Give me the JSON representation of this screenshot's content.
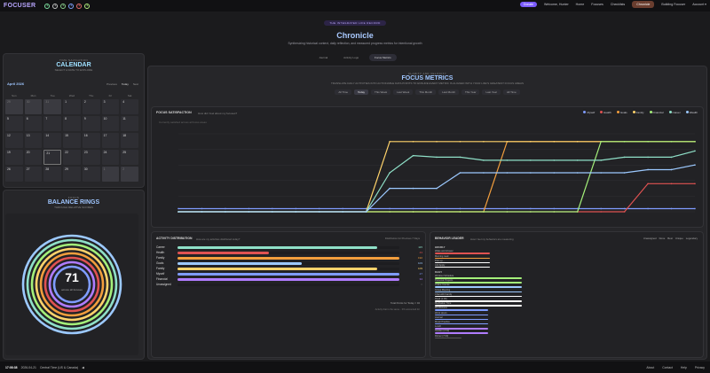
{
  "nav": {
    "logo": "FOCUSER",
    "pill": "Donate",
    "welcome": "Welcome, Hunter",
    "links": [
      "Home",
      "Focuses",
      "Checklists"
    ],
    "active": "Chronicle",
    "extra": [
      "Building Focuser",
      "Account ▾"
    ],
    "dots": [
      "#7ee3a2",
      "#c2c2c2",
      "#8bd18b",
      "#7fa3ff",
      "#e46c6c",
      "#b2f07e"
    ]
  },
  "hero": {
    "eyebrow": "THE INTEGRATED LIFE RECORD",
    "title": "Chronicle",
    "subtitle": "Synthesizing historical context, daily reflection, and measured progress metrics for intentional growth"
  },
  "tabs": [
    "Journal",
    "Activity Logs",
    "Focus Metrics"
  ],
  "activeTab": "Focus Metrics",
  "calendar": {
    "eyebrow": "TIME NAVIGATION",
    "title": "CALENDAR",
    "sub": "SELECT A DATE TO EXPLORE",
    "month": "April 2026",
    "controls": [
      "Previous",
      "Today",
      "Next"
    ],
    "days": [
      "Sun",
      "Mon",
      "Tue",
      "Wed",
      "Thu",
      "Fri",
      "Sat"
    ],
    "cells": [
      "29",
      "30",
      "31",
      "1",
      "2",
      "3",
      "4",
      "5",
      "6",
      "7",
      "8",
      "9",
      "10",
      "11",
      "12",
      "13",
      "14",
      "15",
      "16",
      "17",
      "18",
      "19",
      "20",
      "21",
      "22",
      "23",
      "24",
      "25",
      "26",
      "27",
      "28",
      "29",
      "30",
      "1",
      "2"
    ]
  },
  "rings": {
    "eyebrow": "FOCUS",
    "title": "BALANCE RINGS",
    "sub": "THROUGH RELATIVE SCORES",
    "value": "71",
    "label": "across all focuses"
  },
  "metrics": {
    "eyebrow": "CLARITY AND VELOCITY",
    "title": "FOCUS METRICS",
    "sub": "TRANSLATE DAILY ACTIVITIES INTO ACTIONABLE DATA POINTS TO ENSURE EVERY METRIC IS ALIGNED WITH YOUR LIFE'S GREATEST FOCUS AREAS",
    "ranges": [
      "All Time",
      "Today",
      "This Week",
      "Last Week",
      "This Month",
      "Last Month",
      "This Year",
      "Last Year",
      "All Time"
    ]
  },
  "chart_data": {
    "type": "line",
    "title": "FOCUS SATISFACTION",
    "subtitle": "How did I feel about my focuses?",
    "note": "Currently satisfied across all focus areas",
    "series": [
      {
        "name": "Myself",
        "color": "#7f9cff",
        "values": [
          0.2,
          0.2,
          0.2,
          0.2,
          0.2,
          0.2,
          0.2,
          0.2,
          0.2,
          0.2,
          0.2,
          0.2,
          0.2,
          0.2,
          0.2,
          0.2,
          0.2,
          0.2,
          0.2,
          0.2,
          0.2,
          0.2,
          0.2
        ]
      },
      {
        "name": "Health",
        "color": "#e05252",
        "values": [
          0,
          0,
          0,
          0,
          0,
          0,
          0,
          0,
          0,
          0,
          0,
          0,
          0,
          0,
          0,
          0,
          0,
          0,
          0,
          0,
          1.8,
          1.8,
          1.8
        ]
      },
      {
        "name": "Goals",
        "color": "#f29e3d",
        "values": [
          0,
          0,
          0,
          0,
          0,
          0,
          0,
          0,
          0,
          0,
          0,
          0,
          0,
          0,
          4.5,
          4.5,
          4.5,
          4.5,
          4.5,
          4.5,
          4.5,
          4.5,
          4.5
        ]
      },
      {
        "name": "Family",
        "color": "#ffd36b",
        "values": [
          0,
          0,
          0,
          0,
          0,
          0,
          0,
          0,
          0,
          4.5,
          4.5,
          4.5,
          4.5,
          4.5,
          4.5,
          4.5,
          4.5,
          4.5,
          4.5,
          4.5,
          4.5,
          4.5,
          4.5
        ]
      },
      {
        "name": "Financial",
        "color": "#a4f07a",
        "values": [
          0,
          0,
          0,
          0,
          0,
          0,
          0,
          0,
          0,
          0,
          0,
          0,
          0,
          0,
          0,
          0,
          0,
          0,
          4.5,
          4.5,
          4.5,
          4.5,
          4.5
        ]
      },
      {
        "name": "Career",
        "color": "#8fe0c8",
        "values": [
          0,
          0,
          0,
          0,
          0,
          0,
          0,
          0,
          0,
          2.5,
          3.6,
          3.5,
          3.5,
          3.3,
          3.3,
          3.3,
          3.3,
          3.3,
          3.3,
          3.5,
          3.5,
          3.5,
          3.9
        ]
      },
      {
        "name": "Wealth",
        "color": "#9cc9ff",
        "values": [
          0,
          0,
          0,
          0,
          0,
          0,
          0,
          0,
          0,
          1.5,
          1.5,
          1.5,
          2.5,
          2.5,
          2.5,
          2.5,
          2.5,
          2.5,
          2.5,
          2.5,
          2.7,
          2.7,
          3.0
        ]
      }
    ],
    "ylim": [
      0,
      5
    ]
  },
  "activity": {
    "title": "ACTIVITY DISTRIBUTION",
    "sub": "How are my activities distributed today?",
    "right": "Distribution for Previous 7 Days",
    "rows": [
      {
        "label": "Career",
        "color": "#8fe0c8",
        "value": "115"
      },
      {
        "label": "Health",
        "color": "#e05252",
        "value": "43"
      },
      {
        "label": "Family",
        "color": "#f29e3d",
        "value": "192"
      },
      {
        "label": "Goals",
        "color": "#9cc9ff",
        "value": "103"
      },
      {
        "label": "Family",
        "color": "#ffd36b",
        "value": "109"
      },
      {
        "label": "Myself",
        "color": "#7f9cff",
        "value": "27"
      },
      {
        "label": "Financial",
        "color": "#b07cff",
        "value": "34"
      },
      {
        "label": "Unassigned",
        "color": "#555",
        "value": "0"
      }
    ],
    "fracs": [
      0.9,
      0.41,
      1.0,
      0.56,
      0.9,
      1.0,
      1.0,
      0
    ],
    "total": "Total Points for Today = 04",
    "note": "Activity that is the same... 0% accounted for"
  },
  "leader": {
    "title": "BEHAVIOR LEADER",
    "sub": "How I feel my behaviors are measuring",
    "filters": [
      "Unassigned",
      "Done",
      "Best",
      "Unique",
      "Legendary"
    ],
    "groups": [
      {
        "name": "HOURLY",
        "rows": [
          {
            "n": "Wake and shower",
            "c": "#e05252",
            "w": 0.62
          },
          {
            "n": "Morning read",
            "c": "#f29e3d",
            "w": 0.62
          },
          {
            "n": "Pick up...",
            "c": "#ffffff",
            "w": 0.62
          },
          {
            "n": "Job Apply",
            "c": "#ffffff",
            "w": 0.62
          }
        ]
      },
      {
        "name": "DAILY",
        "rows": [
          {
            "n": "Workout Schedule",
            "c": "#a4f07a",
            "w": 0.98
          },
          {
            "n": "Personal Projects",
            "c": "#a4f07a",
            "w": 0.98
          },
          {
            "n": "Online Course",
            "c": "#9cc9ff",
            "w": 0.98
          },
          {
            "n": "Group Meeting",
            "c": "#9cc9ff",
            "w": 0.98
          },
          {
            "n": "Chat with Family",
            "c": "#ffffff",
            "w": 0.98
          },
          {
            "n": "Read (1:00)",
            "c": "#ffffff",
            "w": 0.98
          },
          {
            "n": "Meditation Time",
            "c": "#ffffff",
            "w": 0.98
          },
          {
            "n": "Mindfulness",
            "c": "#7f9cff",
            "w": 0.6
          },
          {
            "n": "Work Hours",
            "c": "#7f9cff",
            "w": 0.6
          },
          {
            "n": "Journal",
            "c": "#7f9cff",
            "w": 0.6
          },
          {
            "n": "Music Practice",
            "c": "#7f9cff",
            "w": 0.6
          },
          {
            "n": "Lunch",
            "c": "#b07cff",
            "w": 0.6
          },
          {
            "n": "Studies (2:00)",
            "c": "#b07cff",
            "w": 0.6
          },
          {
            "n": "Dinner (7:00)",
            "c": "#555",
            "w": 0.3
          }
        ]
      }
    ]
  },
  "footer": {
    "time": "17:08:38",
    "date": "2026-04-21",
    "zone": "Central Time (US & Canada)",
    "links": [
      "About",
      "Contact",
      "Help",
      "Privacy"
    ]
  }
}
